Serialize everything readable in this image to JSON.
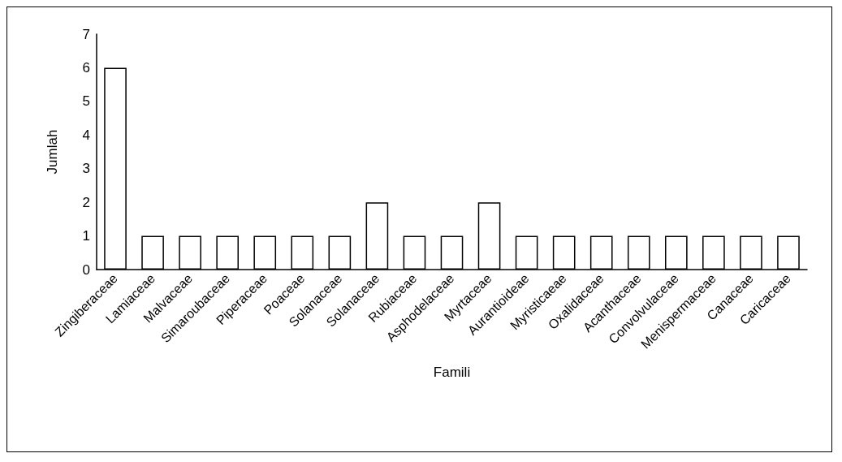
{
  "chart_data": {
    "type": "bar",
    "xlabel": "Famili",
    "ylabel": "Jumlah",
    "categories": [
      "Zingiberaceae",
      "Lamiaceae",
      "Malvaceae",
      "Simaroubaceae",
      "Piperaceae",
      "Poaceae",
      "Solanaceae",
      "Solanaceae",
      "Rubiaceae",
      "Asphodelaceae",
      "Myrtaceae",
      "Aurantioideae",
      "Myristicaeae",
      "Oxalidaceae",
      "Acanthaceae",
      "Convolvulaceae",
      "Menispermaceae",
      "Canaceae",
      "Caricaceae"
    ],
    "values": [
      6,
      1,
      1,
      1,
      1,
      1,
      1,
      2,
      1,
      1,
      2,
      1,
      1,
      1,
      1,
      1,
      1,
      1,
      1
    ],
    "color": "#ffffff",
    "ylim": [
      0,
      7
    ],
    "yticks": [
      0,
      1,
      2,
      3,
      4,
      5,
      6,
      7
    ],
    "grid": false
  }
}
